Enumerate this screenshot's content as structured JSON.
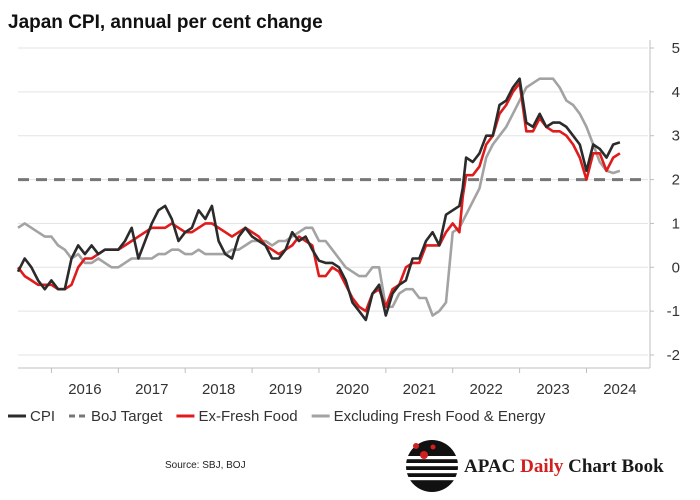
{
  "chart_data": {
    "type": "line",
    "title": "Japan CPI, annual per cent change",
    "xlabel": "",
    "ylabel": "",
    "ylim": [
      -2,
      5
    ],
    "yticks": [
      5,
      4,
      3,
      2,
      1,
      0,
      -1,
      -2
    ],
    "x_tick_labels": [
      "2016",
      "2017",
      "2018",
      "2019",
      "2020",
      "2021",
      "2022",
      "2023",
      "2024"
    ],
    "x_start": 2015.5,
    "x_end": 2024.92,
    "series": [
      {
        "name": "CPI",
        "color": "#2b2b2b",
        "dash": "solid",
        "points": [
          [
            2015.5,
            -0.1
          ],
          [
            2015.6,
            0.2
          ],
          [
            2015.7,
            0.0
          ],
          [
            2015.8,
            -0.3
          ],
          [
            2015.9,
            -0.5
          ],
          [
            2016.0,
            -0.3
          ],
          [
            2016.1,
            -0.5
          ],
          [
            2016.2,
            -0.5
          ],
          [
            2016.3,
            0.2
          ],
          [
            2016.4,
            0.5
          ],
          [
            2016.5,
            0.3
          ],
          [
            2016.6,
            0.5
          ],
          [
            2016.7,
            0.3
          ],
          [
            2016.8,
            0.4
          ],
          [
            2016.9,
            0.4
          ],
          [
            2017.0,
            0.4
          ],
          [
            2017.1,
            0.6
          ],
          [
            2017.2,
            0.9
          ],
          [
            2017.3,
            0.2
          ],
          [
            2017.4,
            0.6
          ],
          [
            2017.5,
            1.0
          ],
          [
            2017.6,
            1.3
          ],
          [
            2017.7,
            1.4
          ],
          [
            2017.8,
            1.1
          ],
          [
            2017.9,
            0.6
          ],
          [
            2018.0,
            0.8
          ],
          [
            2018.1,
            0.9
          ],
          [
            2018.2,
            1.3
          ],
          [
            2018.3,
            1.1
          ],
          [
            2018.4,
            1.4
          ],
          [
            2018.5,
            0.6
          ],
          [
            2018.6,
            0.3
          ],
          [
            2018.7,
            0.2
          ],
          [
            2018.8,
            0.7
          ],
          [
            2018.9,
            0.9
          ],
          [
            2019.0,
            0.7
          ],
          [
            2019.1,
            0.6
          ],
          [
            2019.2,
            0.5
          ],
          [
            2019.3,
            0.2
          ],
          [
            2019.4,
            0.2
          ],
          [
            2019.5,
            0.4
          ],
          [
            2019.6,
            0.8
          ],
          [
            2019.7,
            0.6
          ],
          [
            2019.8,
            0.7
          ],
          [
            2019.9,
            0.4
          ],
          [
            2020.0,
            0.15
          ],
          [
            2020.1,
            0.1
          ],
          [
            2020.2,
            0.1
          ],
          [
            2020.3,
            0.0
          ],
          [
            2020.4,
            -0.3
          ],
          [
            2020.5,
            -0.8
          ],
          [
            2020.6,
            -1.0
          ],
          [
            2020.7,
            -1.2
          ],
          [
            2020.8,
            -0.6
          ],
          [
            2020.9,
            -0.4
          ],
          [
            2021.0,
            -1.1
          ],
          [
            2021.1,
            -0.6
          ],
          [
            2021.2,
            -0.4
          ],
          [
            2021.3,
            -0.3
          ],
          [
            2021.4,
            0.2
          ],
          [
            2021.5,
            0.2
          ],
          [
            2021.6,
            0.6
          ],
          [
            2021.7,
            0.8
          ],
          [
            2021.8,
            0.5
          ],
          [
            2021.9,
            1.2
          ],
          [
            2022.0,
            1.3
          ],
          [
            2022.1,
            1.4
          ],
          [
            2022.15,
            1.8
          ],
          [
            2022.2,
            2.5
          ],
          [
            2022.3,
            2.4
          ],
          [
            2022.4,
            2.6
          ],
          [
            2022.5,
            3.0
          ],
          [
            2022.6,
            3.0
          ],
          [
            2022.7,
            3.7
          ],
          [
            2022.8,
            3.8
          ],
          [
            2022.9,
            4.1
          ],
          [
            2023.0,
            4.3
          ],
          [
            2023.1,
            3.3
          ],
          [
            2023.2,
            3.2
          ],
          [
            2023.3,
            3.5
          ],
          [
            2023.4,
            3.2
          ],
          [
            2023.5,
            3.3
          ],
          [
            2023.6,
            3.3
          ],
          [
            2023.7,
            3.2
          ],
          [
            2023.8,
            3.0
          ],
          [
            2023.9,
            2.8
          ],
          [
            2024.0,
            2.2
          ],
          [
            2024.1,
            2.8
          ],
          [
            2024.2,
            2.7
          ],
          [
            2024.3,
            2.5
          ],
          [
            2024.4,
            2.8
          ],
          [
            2024.5,
            2.85
          ]
        ]
      },
      {
        "name": "BoJ Target",
        "color": "#777777",
        "dash": "dashed",
        "points": [
          [
            2015.5,
            2.0
          ],
          [
            2024.92,
            2.0
          ]
        ]
      },
      {
        "name": "Ex-Fresh Food",
        "color": "#e01b1b",
        "dash": "solid",
        "points": [
          [
            2015.5,
            0.0
          ],
          [
            2015.6,
            -0.2
          ],
          [
            2015.7,
            -0.3
          ],
          [
            2015.8,
            -0.4
          ],
          [
            2015.9,
            -0.4
          ],
          [
            2016.0,
            -0.4
          ],
          [
            2016.1,
            -0.5
          ],
          [
            2016.2,
            -0.5
          ],
          [
            2016.3,
            -0.4
          ],
          [
            2016.4,
            0.0
          ],
          [
            2016.5,
            0.2
          ],
          [
            2016.6,
            0.2
          ],
          [
            2016.7,
            0.3
          ],
          [
            2016.8,
            0.4
          ],
          [
            2016.9,
            0.4
          ],
          [
            2017.0,
            0.4
          ],
          [
            2017.1,
            0.5
          ],
          [
            2017.2,
            0.6
          ],
          [
            2017.3,
            0.7
          ],
          [
            2017.4,
            0.8
          ],
          [
            2017.5,
            0.9
          ],
          [
            2017.6,
            0.9
          ],
          [
            2017.7,
            0.9
          ],
          [
            2017.8,
            1.0
          ],
          [
            2017.9,
            0.9
          ],
          [
            2018.0,
            0.8
          ],
          [
            2018.1,
            0.8
          ],
          [
            2018.2,
            0.9
          ],
          [
            2018.3,
            1.0
          ],
          [
            2018.4,
            1.0
          ],
          [
            2018.5,
            0.9
          ],
          [
            2018.6,
            0.8
          ],
          [
            2018.7,
            0.7
          ],
          [
            2018.8,
            0.8
          ],
          [
            2018.9,
            0.9
          ],
          [
            2019.0,
            0.8
          ],
          [
            2019.1,
            0.7
          ],
          [
            2019.2,
            0.5
          ],
          [
            2019.3,
            0.4
          ],
          [
            2019.4,
            0.3
          ],
          [
            2019.5,
            0.4
          ],
          [
            2019.6,
            0.5
          ],
          [
            2019.7,
            0.7
          ],
          [
            2019.8,
            0.6
          ],
          [
            2019.9,
            0.5
          ],
          [
            2020.0,
            -0.2
          ],
          [
            2020.1,
            -0.2
          ],
          [
            2020.2,
            0.0
          ],
          [
            2020.3,
            -0.1
          ],
          [
            2020.4,
            -0.4
          ],
          [
            2020.5,
            -0.7
          ],
          [
            2020.6,
            -0.9
          ],
          [
            2020.7,
            -1.0
          ],
          [
            2020.8,
            -0.6
          ],
          [
            2020.9,
            -0.5
          ],
          [
            2021.0,
            -0.9
          ],
          [
            2021.1,
            -0.5
          ],
          [
            2021.2,
            -0.4
          ],
          [
            2021.3,
            0.0
          ],
          [
            2021.4,
            0.1
          ],
          [
            2021.5,
            0.1
          ],
          [
            2021.6,
            0.5
          ],
          [
            2021.7,
            0.5
          ],
          [
            2021.8,
            0.5
          ],
          [
            2021.9,
            0.8
          ],
          [
            2022.0,
            1.0
          ],
          [
            2022.1,
            0.8
          ],
          [
            2022.15,
            1.6
          ],
          [
            2022.2,
            2.1
          ],
          [
            2022.3,
            2.1
          ],
          [
            2022.4,
            2.3
          ],
          [
            2022.5,
            2.8
          ],
          [
            2022.6,
            3.0
          ],
          [
            2022.7,
            3.5
          ],
          [
            2022.8,
            3.7
          ],
          [
            2022.9,
            4.0
          ],
          [
            2023.0,
            4.2
          ],
          [
            2023.1,
            3.1
          ],
          [
            2023.2,
            3.1
          ],
          [
            2023.3,
            3.4
          ],
          [
            2023.4,
            3.2
          ],
          [
            2023.5,
            3.1
          ],
          [
            2023.6,
            3.1
          ],
          [
            2023.7,
            3.0
          ],
          [
            2023.8,
            2.8
          ],
          [
            2023.9,
            2.5
          ],
          [
            2024.0,
            2.0
          ],
          [
            2024.1,
            2.6
          ],
          [
            2024.2,
            2.6
          ],
          [
            2024.3,
            2.2
          ],
          [
            2024.4,
            2.5
          ],
          [
            2024.5,
            2.6
          ]
        ]
      },
      {
        "name": "Excluding Fresh Food & Energy",
        "color": "#a3a3a3",
        "dash": "solid",
        "points": [
          [
            2015.5,
            0.9
          ],
          [
            2015.6,
            1.0
          ],
          [
            2015.7,
            0.9
          ],
          [
            2015.8,
            0.8
          ],
          [
            2015.9,
            0.7
          ],
          [
            2016.0,
            0.7
          ],
          [
            2016.1,
            0.5
          ],
          [
            2016.2,
            0.4
          ],
          [
            2016.3,
            0.2
          ],
          [
            2016.4,
            0.3
          ],
          [
            2016.5,
            0.1
          ],
          [
            2016.6,
            0.1
          ],
          [
            2016.7,
            0.2
          ],
          [
            2016.8,
            0.1
          ],
          [
            2016.9,
            0.0
          ],
          [
            2017.0,
            0.0
          ],
          [
            2017.1,
            0.1
          ],
          [
            2017.2,
            0.2
          ],
          [
            2017.3,
            0.2
          ],
          [
            2017.4,
            0.2
          ],
          [
            2017.5,
            0.2
          ],
          [
            2017.6,
            0.3
          ],
          [
            2017.7,
            0.3
          ],
          [
            2017.8,
            0.4
          ],
          [
            2017.9,
            0.4
          ],
          [
            2018.0,
            0.3
          ],
          [
            2018.1,
            0.3
          ],
          [
            2018.2,
            0.4
          ],
          [
            2018.3,
            0.3
          ],
          [
            2018.4,
            0.3
          ],
          [
            2018.5,
            0.3
          ],
          [
            2018.6,
            0.3
          ],
          [
            2018.7,
            0.4
          ],
          [
            2018.8,
            0.4
          ],
          [
            2018.9,
            0.5
          ],
          [
            2019.0,
            0.6
          ],
          [
            2019.1,
            0.6
          ],
          [
            2019.2,
            0.6
          ],
          [
            2019.3,
            0.5
          ],
          [
            2019.4,
            0.6
          ],
          [
            2019.5,
            0.6
          ],
          [
            2019.6,
            0.7
          ],
          [
            2019.7,
            0.8
          ],
          [
            2019.8,
            0.9
          ],
          [
            2019.9,
            0.9
          ],
          [
            2020.0,
            0.6
          ],
          [
            2020.1,
            0.6
          ],
          [
            2020.2,
            0.4
          ],
          [
            2020.3,
            0.2
          ],
          [
            2020.4,
            0.0
          ],
          [
            2020.5,
            -0.1
          ],
          [
            2020.6,
            -0.2
          ],
          [
            2020.7,
            -0.2
          ],
          [
            2020.8,
            0.0
          ],
          [
            2020.9,
            0.0
          ],
          [
            2021.0,
            -0.9
          ],
          [
            2021.1,
            -0.9
          ],
          [
            2021.2,
            -0.6
          ],
          [
            2021.3,
            -0.5
          ],
          [
            2021.4,
            -0.5
          ],
          [
            2021.5,
            -0.7
          ],
          [
            2021.6,
            -0.7
          ],
          [
            2021.7,
            -1.1
          ],
          [
            2021.8,
            -1.0
          ],
          [
            2021.9,
            -0.8
          ],
          [
            2022.0,
            0.8
          ],
          [
            2022.1,
            0.9
          ],
          [
            2022.2,
            1.2
          ],
          [
            2022.3,
            1.5
          ],
          [
            2022.4,
            1.8
          ],
          [
            2022.5,
            2.5
          ],
          [
            2022.6,
            2.8
          ],
          [
            2022.7,
            3.0
          ],
          [
            2022.8,
            3.2
          ],
          [
            2022.9,
            3.5
          ],
          [
            2023.0,
            3.8
          ],
          [
            2023.1,
            4.1
          ],
          [
            2023.2,
            4.2
          ],
          [
            2023.3,
            4.3
          ],
          [
            2023.4,
            4.3
          ],
          [
            2023.5,
            4.3
          ],
          [
            2023.6,
            4.1
          ],
          [
            2023.7,
            3.8
          ],
          [
            2023.8,
            3.7
          ],
          [
            2023.9,
            3.5
          ],
          [
            2024.0,
            3.2
          ],
          [
            2024.1,
            2.8
          ],
          [
            2024.2,
            2.4
          ],
          [
            2024.3,
            2.2
          ],
          [
            2024.4,
            2.15
          ],
          [
            2024.5,
            2.2
          ]
        ]
      }
    ]
  },
  "source": "Source: SBJ, BOJ",
  "brand": {
    "prefix": "APAC",
    "highlight": "Daily",
    "suffix": "Chart Book",
    "highlight_color": "#d21f1f",
    "text_color": "#1a1a1a"
  }
}
